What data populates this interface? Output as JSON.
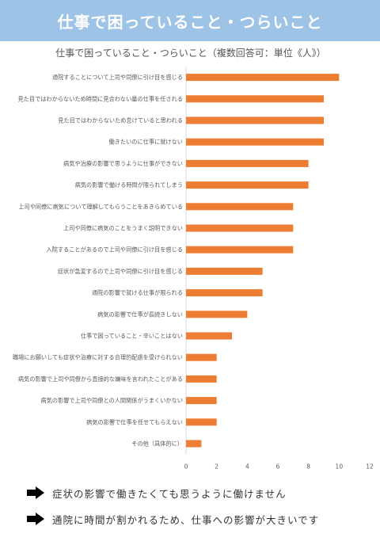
{
  "header": {
    "title": "仕事で困っていること・つらいこと"
  },
  "chart_data": {
    "type": "bar",
    "orientation": "horizontal",
    "title": "仕事で困っていること・つらいこと（複数回答可：単位《人》）",
    "categories": [
      "通院することについて上司や同僚に引け目を感じる",
      "見た目ではわからないため時間に見合わない量の仕事を任される",
      "見た目ではわからないため怠けていると思われる",
      "働きたいのに仕事に就けない",
      "病気や治療の影響で思うように仕事ができない",
      "病気の影響で働ける時間が限られてしまう",
      "上司や同僚に病気について理解してもらうことをあきらめている",
      "上司や同僚に病気のことをうまく説明できない",
      "入院することがあるので上司や同僚に引け目を感じる",
      "症状が急変するので上司や同僚に引け目を感じる",
      "通院の影響で就ける仕事が限られる",
      "病気の影響で仕事が長続きしない",
      "仕事で困っていること・辛いことはない",
      "職場にお願いしても症状や治療に対する合理的配慮を受けられない",
      "病気の影響で上司や同僚から直接的な嫌味を言われたことがある",
      "病気の影響で上司や同僚との人間関係がうまくいかない",
      "病気の影響で仕事を任せてもらえない",
      "その他（具体的に）"
    ],
    "values": [
      10,
      9,
      9,
      9,
      8,
      8,
      7,
      7,
      7,
      5,
      5,
      4,
      3,
      2,
      2,
      2,
      2,
      1
    ],
    "xlim": [
      0,
      12
    ],
    "xticks": [
      "0",
      "2",
      "4",
      "6",
      "8",
      "10",
      "12"
    ],
    "bar_color": "#ED7D31",
    "grid": false
  },
  "notes": [
    {
      "icon": "arrow-right-icon",
      "text": "症状の影響で働きたくても思うように働けません"
    },
    {
      "icon": "arrow-right-icon",
      "text": "通院に時間が割かれるため、仕事への影響が大きいです"
    }
  ]
}
